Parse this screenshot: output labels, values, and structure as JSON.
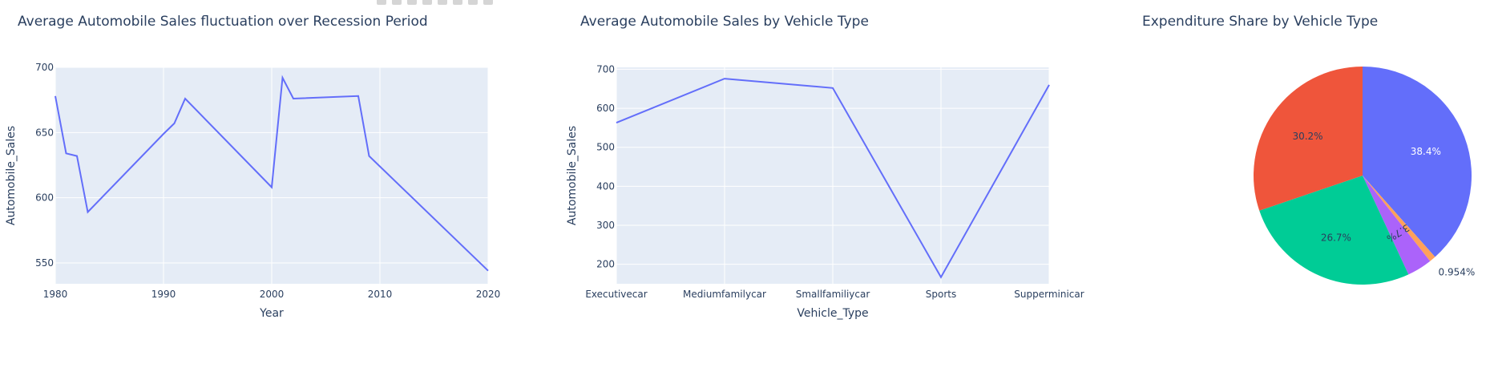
{
  "modebar": {
    "icons": [
      "camera-icon",
      "zoom-icon",
      "pan-icon",
      "zoom-in-icon",
      "zoom-out-icon",
      "autoscale-icon",
      "reset-icon",
      "plotly-logo-icon"
    ]
  },
  "chart_data": [
    {
      "type": "line",
      "title": "Average Automobile Sales fluctuation over Recession Period",
      "xlabel": "Year",
      "ylabel": "Automobile_Sales",
      "x": [
        1980,
        1981,
        1982,
        1983,
        1990,
        1991,
        1992,
        2000,
        2001,
        2002,
        2008,
        2009,
        2020
      ],
      "y": [
        678,
        634,
        632,
        589,
        649,
        657,
        676,
        608,
        692,
        676,
        678,
        632,
        544
      ],
      "xlim": [
        1980,
        2020
      ],
      "ylim": [
        534,
        700
      ],
      "xticks": [
        "1980",
        "1990",
        "2000",
        "2010",
        "2020"
      ],
      "yticks": [
        "550",
        "600",
        "650",
        "700"
      ],
      "grid": true,
      "color": "#636efa"
    },
    {
      "type": "line",
      "title": "Average Automobile Sales by Vehicle Type",
      "xlabel": "Vehicle_Type",
      "ylabel": "Automobile_Sales",
      "categories": [
        "Executivecar",
        "Mediumfamilycar",
        "Smallfamiliycar",
        "Sports",
        "Supperminicar"
      ],
      "values": [
        563,
        676,
        652,
        167,
        660
      ],
      "ylim": [
        150,
        705
      ],
      "yticks": [
        "200",
        "300",
        "400",
        "500",
        "600",
        "700"
      ],
      "grid": true,
      "color": "#636efa"
    },
    {
      "type": "pie",
      "title": "Expenditure Share by Vehicle Type",
      "slices": [
        {
          "value": 38.4,
          "label": "38.4%",
          "color": "#636efa",
          "label_color": "#ffffff",
          "outside": false
        },
        {
          "value": 0.954,
          "label": "0.954%",
          "color": "#ffa15a",
          "label_color": "#2a3f5f",
          "outside": true
        },
        {
          "value": 3.7,
          "label": "3.7%",
          "color": "#ab63fa",
          "label_color": "#2a3f5f",
          "outside": false
        },
        {
          "value": 26.7,
          "label": "26.7%",
          "color": "#00cc96",
          "label_color": "#2a3f5f",
          "outside": false
        },
        {
          "value": 30.2,
          "label": "30.2%",
          "color": "#ef553b",
          "label_color": "#2a3f5f",
          "outside": false
        }
      ]
    }
  ]
}
